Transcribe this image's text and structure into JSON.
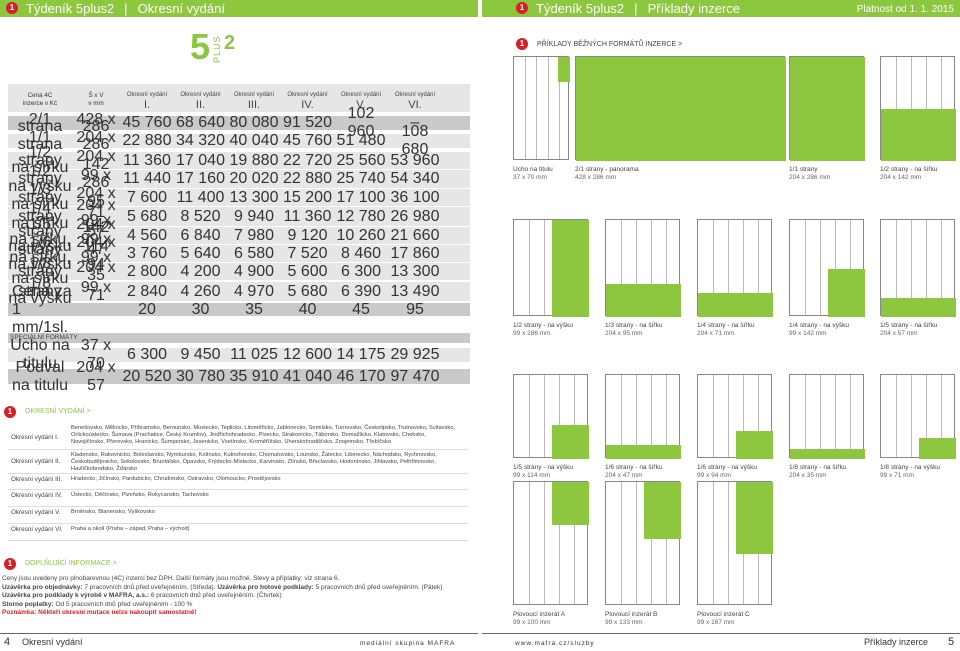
{
  "header": {
    "left_title": "Týdeník 5plus2",
    "left_section": "Okresní vydání",
    "right_title": "Týdeník 5plus2",
    "right_section": "Příklady inzerce",
    "validity": "Platnost od 1. 1. 2015",
    "ball": "1"
  },
  "logo": {
    "five": "5",
    "plus": "PLUS",
    "two": "2"
  },
  "table": {
    "corner1": "Cena 4C",
    "corner2": "inzerce v Kč",
    "dims1": "Š x V",
    "dims2": "v mm",
    "edition_word": "Okresní vydání",
    "editions": [
      "I.",
      "II.",
      "III.",
      "IV.",
      "V.",
      "VI."
    ],
    "rows": [
      {
        "label": [
          "2/1 strana"
        ],
        "size": [
          "428 x 286"
        ],
        "prices": [
          "45 760",
          "68 640",
          "80 080",
          "91 520",
          "102 960",
          "–"
        ]
      },
      {
        "label": [
          "1/1 strana"
        ],
        "size": [
          "204 x 286"
        ],
        "prices": [
          "22 880",
          "34 320",
          "40 040",
          "45 760",
          "51 480",
          "108 680"
        ]
      },
      {
        "label": [
          "1/2 strany",
          "na šířku"
        ],
        "size": [
          "204 x 142"
        ],
        "prices": [
          "11 360",
          "17 040",
          "19 880",
          "22 720",
          "25 560",
          "53 960"
        ]
      },
      {
        "label": [
          "1/2 strany",
          "na výšku"
        ],
        "size": [
          "99 x 286"
        ],
        "prices": [
          "11 440",
          "17 160",
          "20 020",
          "22 880",
          "25 740",
          "54 340"
        ]
      },
      {
        "label": [
          "1/3 strany",
          "na šířku"
        ],
        "size": [
          "204 x 95"
        ],
        "prices": [
          "7 600",
          "11 400",
          "13 300",
          "15 200",
          "17 100",
          "36 100"
        ]
      },
      {
        "label": [
          "1/4 strany",
          "na šířku"
        ],
        "size": [
          "204 x 71",
          "99 x 142"
        ],
        "prices": [
          "5 680",
          "8 520",
          "9 940",
          "11 360",
          "12 780",
          "26 980"
        ]
      },
      {
        "label": [
          "1/5 strany na šířku,",
          "na výšku"
        ],
        "size": [
          "204 x 57",
          "99 x 114"
        ],
        "prices": [
          "4 560",
          "6 840",
          "7 980",
          "9 120",
          "10 260",
          "21 660"
        ]
      },
      {
        "label": [
          "1/6 strany na šířku,",
          "na výšku"
        ],
        "size": [
          "204 x 47",
          "99 x 94"
        ],
        "prices": [
          "3 760",
          "5 640",
          "6 580",
          "7 520",
          "8 460",
          "17 860"
        ]
      },
      {
        "label": [
          "1/8 strany",
          "na šířku"
        ],
        "size": [
          "204 x 35"
        ],
        "prices": [
          "2 800",
          "4 200",
          "4 900",
          "5 600",
          "6 300",
          "13 300"
        ]
      },
      {
        "label": [
          "1/8 strany",
          "na výšku"
        ],
        "size": [
          "99 x 71"
        ],
        "prices": [
          "2 840",
          "4 260",
          "4 970",
          "5 680",
          "6 390",
          "13 490"
        ]
      }
    ],
    "mm_row": {
      "label": "Cena za 1 mm/1sl.",
      "prices": [
        "20",
        "30",
        "35",
        "40",
        "45",
        "95"
      ]
    },
    "special_title": "SPECIÁLNÍ FORMÁTY",
    "special": [
      {
        "label": "Ucho na titulu",
        "size": "37 x 70",
        "prices": [
          "6 300",
          "9 450",
          "11 025",
          "12 600",
          "14 175",
          "29 925"
        ]
      },
      {
        "label": "Podval na titulu",
        "size": "204 x 57",
        "prices": [
          "20 520",
          "30 780",
          "35 910",
          "41 040",
          "46 170",
          "97 470"
        ]
      }
    ]
  },
  "regions": {
    "title": "OKRESNÍ VYDÁNÍ >",
    "items": [
      {
        "label": "Okresní vydání I.",
        "text": "Benešovsko, Mělnicko, Příbramsko, Berounsko, Mostecko, Teplicko, Litoměřicko, Jablonecko, Semilsko, Turnovsko, Českolipsko, Trutnovsko, Svitavsko, Orlickoústecko, Šumava (Prachatice, Český Krumlov), Jindřichohradecko, Písecko, Strakonicko, Táborsko, Domažlicko, Klatovsko, Chebsko, Novojičínsko, Přerovsko, Hranicko, Šumpersko, Jesenicko, Vsetínsko, Kroměřížsko, Uherskohradišťsko, Znojemsko, Třebíčsko"
      },
      {
        "label": "Okresní vydání II.",
        "text": "Kladensko, Rakovnicko, Boleslavsko, Nymbursko, Kolínsko, Kutnohorsko, Chomutovsko, Lounsko, Žatecko, Liberecko, Náchodsko, Rychnovsko, Českobudějovicko, Sokolovsko, Bruntálsko, Opavsko, Frýdecko-Místecko, Karvinsko, Zlínsko, Břeclavsko, Hodonínsko, Jihlavsko, Pelhřimovsko, Havlíčkobrodsko, Žďársko"
      },
      {
        "label": "Okresní vydání III.",
        "text": "Hradecko, Jičínsko, Pardubicko, Chrudimsko, Ostravsko, Olomoucko, Prostějovsko"
      },
      {
        "label": "Okresní vydání IV.",
        "text": "Ústecko, Děčínsko, Plzeňsko, Rokycansko, Tachovsko"
      },
      {
        "label": "Okresní vydání V.",
        "text": "Brněnsko, Blanensko, Vyškovsko"
      },
      {
        "label": "Okresní vydání VI.",
        "text": "Praha a okolí (Praha – západ, Praha – východ)"
      }
    ]
  },
  "extra": {
    "title": "DOPLŇUJÍCÍ INFORMACE >",
    "line1": "Ceny jsou uvedeny pro plnobarevnou (4C) inzerci bez DPH. Další formáty jsou možné. Slevy a příplatky: viz strana 6.",
    "line2_b": "Uzávěrka pro objednávky:",
    "line2": " 7 pracovních dnů před uveřejněním. (Středa).",
    "line2_b2": " Uzávěrka pro hotové podklady:",
    "line2b": " 5 pracovních dnů před uveřejněním. (Pátek)",
    "line3_b": "Uzávěrka pro podklady k výrobě v MAFRA, a.s.:",
    "line3": " 6 pracovních dnů před uveřejněním. (Čtvrtek)",
    "line4_b": "Storno poplatky:",
    "line4": " Od 5 pracovních dnů před uveřejněním - 100 %",
    "line5_b": "Poznámka:",
    "line5": " Někteří okresní mutace nelze nakoupit samostatně!"
  },
  "footer": {
    "left_page": "4",
    "left_section": "Okresní vydání",
    "publisher": "mediální skupina MAFRA",
    "url": "www.mafra.cz/sluzby",
    "right_section": "Příklady inzerce",
    "right_page": "5"
  },
  "examples": {
    "title": "PŘÍKLADY BĚŽNÝCH FORMÁTŮ INZERCE >",
    "items": [
      {
        "name": "Ucho na titulu",
        "size": "37 x 70 mm"
      },
      {
        "name": "2/1 strany - panorama",
        "size": "428 x 286 mm"
      },
      {
        "name": "1/1 strany",
        "size": "204 x 286 mm"
      },
      {
        "name": "1/2 strany - na šířku",
        "size": "204 x 142 mm"
      },
      {
        "name": "1/2 strany - na výšku",
        "size": "99 x 286 mm"
      },
      {
        "name": "1/3 strany - na šířku",
        "size": "204 x 95 mm"
      },
      {
        "name": "1/4 strany - na šířku",
        "size": "204 x 71 mm"
      },
      {
        "name": "1/4 strany - na výšku",
        "size": "99 x 142 mm"
      },
      {
        "name": "1/5 strany - na šířku",
        "size": "204 x 57 mm"
      },
      {
        "name": "1/5 strany - na výšku",
        "size": "99 x 114 mm"
      },
      {
        "name": "1/6 strany - na šířku",
        "size": "204 x 47 mm"
      },
      {
        "name": "1/6 strany - na výšku",
        "size": "99 x 94 mm"
      },
      {
        "name": "1/8 strany - na šířku",
        "size": "204 x 35 mm"
      },
      {
        "name": "1/8 strany - na výšku",
        "size": "99 x 71 mm"
      },
      {
        "name": "Plovoucí inzerát A",
        "size": "99 x 100 mm"
      },
      {
        "name": "Plovoucí inzerát B",
        "size": "99 x 133 mm"
      },
      {
        "name": "Plovoucí inzerát C",
        "size": "99 x 167 mm"
      }
    ]
  },
  "colors": {
    "accent": "#8dc63f",
    "ball": "#d81f26"
  }
}
